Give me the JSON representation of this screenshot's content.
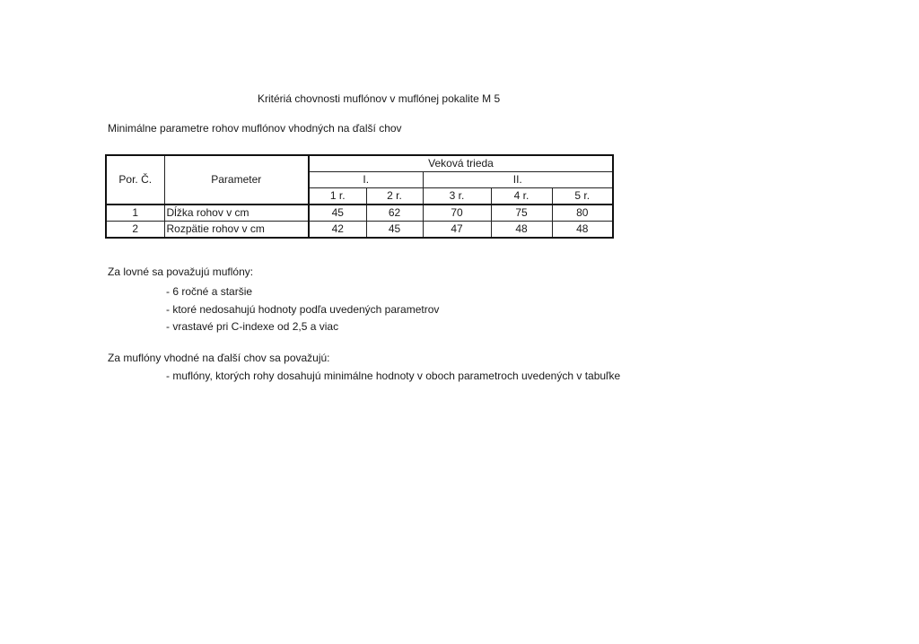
{
  "title": "Kritériá chovnosti muflónov v muflónej pokalite M 5",
  "subtitle": "Minimálne parametre rohov muflónov vhodných na ďalší chov",
  "table": {
    "col_num": "Por. Č.",
    "col_param": "Parameter",
    "group": "Veková trieda",
    "classes": [
      "I.",
      "II."
    ],
    "years": [
      "1 r.",
      "2 r.",
      "3 r.",
      "4 r.",
      "5 r."
    ],
    "rows": [
      {
        "num": "1",
        "param": "Dĺžka rohov v cm",
        "values": [
          "45",
          "62",
          "70",
          "75",
          "80"
        ]
      },
      {
        "num": "2",
        "param": "Rozpätie rohov v cm",
        "values": [
          "42",
          "45",
          "47",
          "48",
          "48"
        ]
      }
    ]
  },
  "hunting": {
    "heading": "Za lovné sa považujú muflóny:",
    "items": [
      "- 6 ročné a staršie",
      "- ktoré nedosahujú hodnoty podľa uvedených parametrov",
      "- vrastavé pri C-indexe od 2,5 a viac"
    ]
  },
  "breeding": {
    "heading": "Za muflóny vhodné na ďalší chov sa považujú:",
    "items": [
      "- muflóny, ktorých rohy dosahujú minimálne hodnoty v oboch parametroch uvedených v tabuľke"
    ]
  }
}
